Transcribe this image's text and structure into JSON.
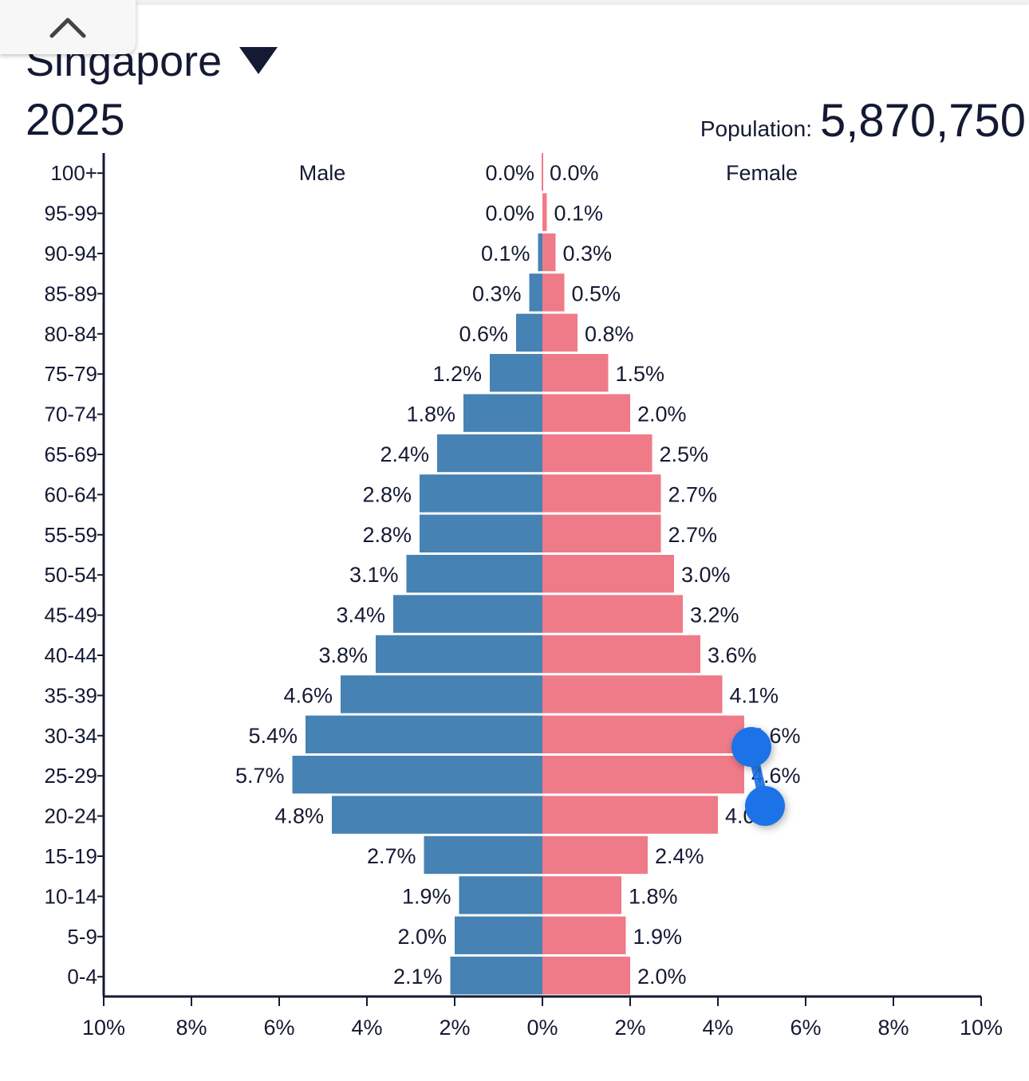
{
  "header": {
    "country": "Singapore",
    "year": "2025",
    "population_label": "Population:",
    "population_value": "5,870,750"
  },
  "icons": {
    "collapse": "chevron-up-icon",
    "dropdown": "caret-down-icon"
  },
  "colors": {
    "male": "#4682b4",
    "female": "#ef7b88",
    "text": "#141a33",
    "handle": "#1a73e8"
  },
  "chart_data": {
    "type": "bar",
    "orientation": "horizontal-pyramid",
    "categories": [
      "100+",
      "95-99",
      "90-94",
      "85-89",
      "80-84",
      "75-79",
      "70-74",
      "65-69",
      "60-64",
      "55-59",
      "50-54",
      "45-49",
      "40-44",
      "35-39",
      "30-34",
      "25-29",
      "20-24",
      "15-19",
      "10-14",
      "5-9",
      "0-4"
    ],
    "series": [
      {
        "name": "Male",
        "values": [
          0.0,
          0.0,
          0.1,
          0.3,
          0.6,
          1.2,
          1.8,
          2.4,
          2.8,
          2.8,
          3.1,
          3.4,
          3.8,
          4.6,
          5.4,
          5.7,
          4.8,
          2.7,
          1.9,
          2.0,
          2.1
        ],
        "labels": [
          "0.0%",
          "0.0%",
          "0.1%",
          "0.3%",
          "0.6%",
          "1.2%",
          "1.8%",
          "2.4%",
          "2.8%",
          "2.8%",
          "3.1%",
          "3.4%",
          "3.8%",
          "4.6%",
          "5.4%",
          "5.7%",
          "4.8%",
          "2.7%",
          "1.9%",
          "2.0%",
          "2.1%"
        ]
      },
      {
        "name": "Female",
        "values": [
          0.0,
          0.1,
          0.3,
          0.5,
          0.8,
          1.5,
          2.0,
          2.5,
          2.7,
          2.7,
          3.0,
          3.2,
          3.6,
          4.1,
          4.6,
          4.6,
          4.0,
          2.4,
          1.8,
          1.9,
          2.0
        ],
        "labels": [
          "0.0%",
          "0.1%",
          "0.3%",
          "0.5%",
          "0.8%",
          "1.5%",
          "2.0%",
          "2.5%",
          "2.7%",
          "2.7%",
          "3.0%",
          "3.2%",
          "3.6%",
          "4.1%",
          "4.6%",
          "4.6%",
          "4.0%",
          "2.4%",
          "1.8%",
          "1.9%",
          "2.0%"
        ]
      }
    ],
    "x_ticks": [
      -10,
      -8,
      -6,
      -4,
      -2,
      0,
      2,
      4,
      6,
      8,
      10
    ],
    "x_tick_labels": [
      "10%",
      "8%",
      "6%",
      "4%",
      "2%",
      "0%",
      "2%",
      "4%",
      "6%",
      "8%",
      "10%"
    ],
    "xlim": [
      -10,
      10
    ],
    "grid": false,
    "legend": "top"
  }
}
